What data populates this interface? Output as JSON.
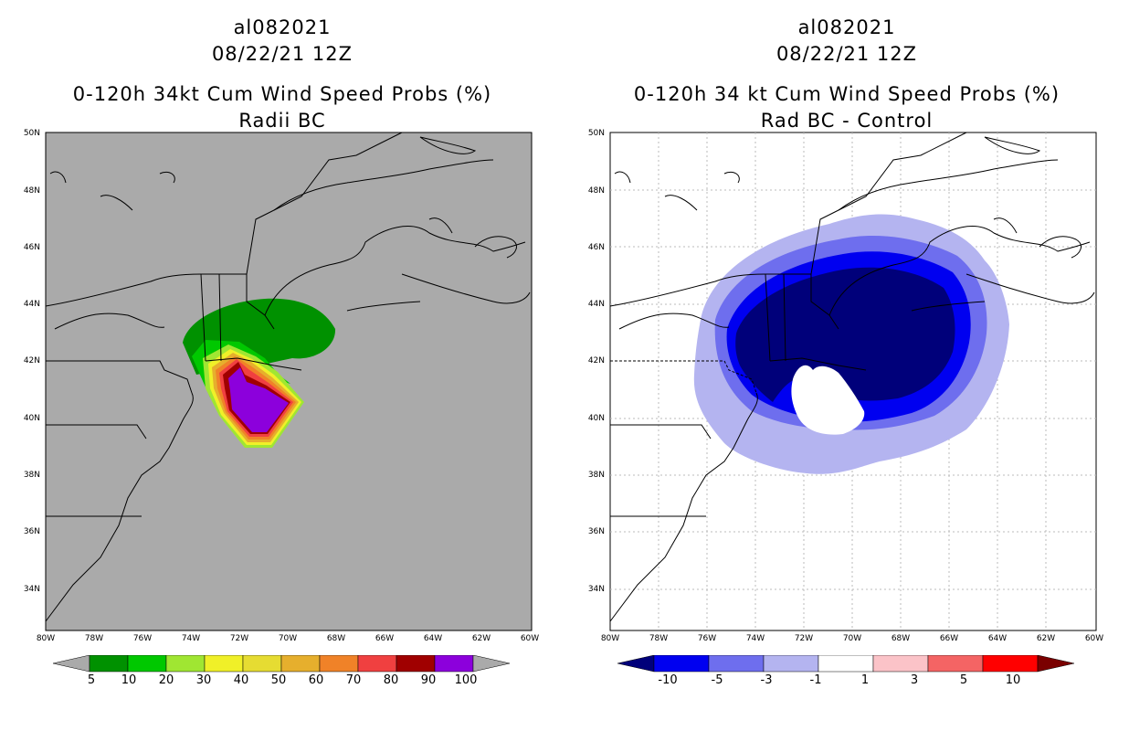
{
  "left_panel": {
    "storm_id": "al082021",
    "datetime": "08/22/21 12Z",
    "title": "0-120h 34kt Cum Wind Speed Probs (%)",
    "subtitle": "Radii BC",
    "lat_labels": [
      "50N",
      "48N",
      "46N",
      "44N",
      "42N",
      "40N",
      "38N",
      "36N",
      "34N"
    ],
    "lon_labels": [
      "80W",
      "78W",
      "76W",
      "74W",
      "72W",
      "70W",
      "68W",
      "66W",
      "64W",
      "62W",
      "60W"
    ],
    "colorbar_labels": [
      "5",
      "10",
      "20",
      "30",
      "40",
      "50",
      "60",
      "70",
      "80",
      "90",
      "100"
    ],
    "colorbar_colors": [
      "#aaaaaa",
      "#009100",
      "#00c800",
      "#a0e632",
      "#f0f028",
      "#e6dc32",
      "#e6af2d",
      "#f08228",
      "#f04040",
      "#a00000",
      "#8c00dc",
      "#aaaaaa"
    ]
  },
  "right_panel": {
    "storm_id": "al082021",
    "datetime": "08/22/21 12Z",
    "title": "0-120h 34 kt Cum Wind Speed Probs (%)",
    "subtitle": "Rad BC - Control",
    "lat_labels": [
      "50N",
      "48N",
      "46N",
      "44N",
      "42N",
      "40N",
      "38N",
      "36N",
      "34N"
    ],
    "lon_labels": [
      "80W",
      "78W",
      "76W",
      "74W",
      "72W",
      "70W",
      "68W",
      "66W",
      "64W",
      "62W",
      "60W"
    ],
    "colorbar_labels": [
      "-10",
      "-5",
      "-3",
      "-1",
      "1",
      "3",
      "5",
      "10"
    ],
    "colorbar_colors": [
      "#00007a",
      "#0000f0",
      "#6e6eee",
      "#b4b4f0",
      "#ffffff",
      "#fbc3c8",
      "#f46464",
      "#ff0000",
      "#7a0000"
    ]
  }
}
